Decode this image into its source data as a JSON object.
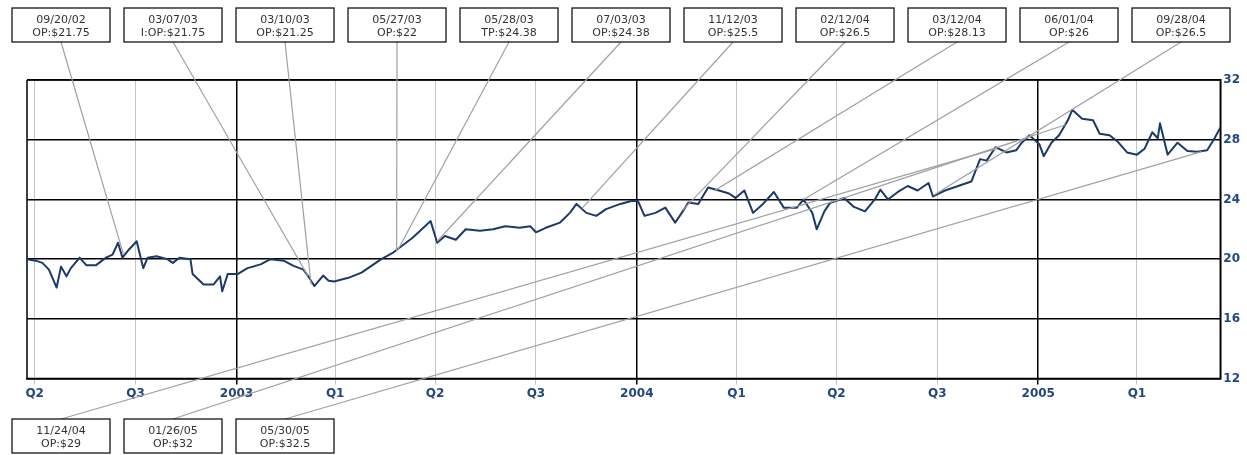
{
  "chart_data": {
    "type": "line",
    "x": [
      "2002-06-24",
      "2002-07-02",
      "2002-07-08",
      "2002-07-14",
      "2002-07-21",
      "2002-07-25",
      "2002-07-30",
      "2002-08-03",
      "2002-08-11",
      "2002-08-17",
      "2002-08-26",
      "2002-09-04",
      "2002-09-10",
      "2002-09-15",
      "2002-09-19",
      "2002-09-25",
      "2002-10-02",
      "2002-10-08",
      "2002-10-12",
      "2002-10-20",
      "2002-10-30",
      "2002-11-04",
      "2002-11-10",
      "2002-11-20",
      "2002-11-22",
      "2002-12-02",
      "2002-12-11",
      "2002-12-17",
      "2002-12-19",
      "2002-12-24",
      "2003-01-02",
      "2003-01-11",
      "2003-01-23",
      "2003-02-01",
      "2003-02-13",
      "2003-02-22",
      "2003-03-03",
      "2003-03-07",
      "2003-03-13",
      "2003-03-21",
      "2003-03-26",
      "2003-03-31",
      "2003-04-13",
      "2003-04-25",
      "2003-05-04",
      "2003-05-13",
      "2003-05-23",
      "2003-06-01",
      "2003-06-10",
      "2003-06-16",
      "2003-06-27",
      "2003-07-03",
      "2003-07-10",
      "2003-07-20",
      "2003-07-29",
      "2003-08-11",
      "2003-08-23",
      "2003-09-03",
      "2003-09-16",
      "2003-09-26",
      "2003-10-01",
      "2003-10-10",
      "2003-10-23",
      "2003-11-01",
      "2003-11-07",
      "2003-11-16",
      "2003-11-25",
      "2003-12-04",
      "2003-12-17",
      "2003-12-27",
      "2004-01-02",
      "2004-01-08",
      "2004-01-18",
      "2004-01-27",
      "2004-02-05",
      "2004-02-11",
      "2004-02-17",
      "2004-02-26",
      "2004-03-06",
      "2004-03-16",
      "2004-03-25",
      "2004-03-31",
      "2004-04-08",
      "2004-04-16",
      "2004-04-25",
      "2004-05-05",
      "2004-05-14",
      "2004-05-26",
      "2004-06-01",
      "2004-06-09",
      "2004-06-13",
      "2004-06-20",
      "2004-06-25",
      "2004-07-08",
      "2004-07-17",
      "2004-07-27",
      "2004-08-05",
      "2004-08-10",
      "2004-08-17",
      "2004-08-26",
      "2004-09-04",
      "2004-09-13",
      "2004-09-23",
      "2004-09-27",
      "2004-10-08",
      "2004-10-20",
      "2004-11-01",
      "2004-11-09",
      "2004-11-15",
      "2004-11-23",
      "2004-12-03",
      "2004-12-12",
      "2004-12-17",
      "2004-12-24",
      "2005-01-02",
      "2005-01-06",
      "2005-01-13",
      "2005-01-20",
      "2005-01-28",
      "2005-02-01",
      "2005-02-10",
      "2005-02-20",
      "2005-02-26",
      "2005-03-07",
      "2005-03-14",
      "2005-03-23",
      "2005-04-01",
      "2005-04-08",
      "2005-04-15",
      "2005-04-20",
      "2005-04-22",
      "2005-04-29",
      "2005-05-08",
      "2005-05-17",
      "2005-05-26",
      "2005-06-04",
      "2005-06-10",
      "2005-06-16"
    ],
    "series": [
      {
        "color": "#1b3a6b",
        "values": [
          20.0,
          19.9,
          19.75,
          19.3,
          18.1,
          19.5,
          18.85,
          19.4,
          20.1,
          19.6,
          19.6,
          20.1,
          20.3,
          21.1,
          20.1,
          20.65,
          21.2,
          19.4,
          20.1,
          20.2,
          20.0,
          19.75,
          20.1,
          20.0,
          19.0,
          18.3,
          18.3,
          18.85,
          17.85,
          19.0,
          19.0,
          19.4,
          19.65,
          20.0,
          19.9,
          19.55,
          19.3,
          18.9,
          18.2,
          18.9,
          18.55,
          18.5,
          18.75,
          19.1,
          19.55,
          20.0,
          20.4,
          20.9,
          21.4,
          21.8,
          22.55,
          21.1,
          21.55,
          21.3,
          22.0,
          21.9,
          22.0,
          22.2,
          22.1,
          22.2,
          21.8,
          22.1,
          22.45,
          23.1,
          23.7,
          23.1,
          22.9,
          23.35,
          23.7,
          23.9,
          23.9,
          22.9,
          23.1,
          23.45,
          22.45,
          23.1,
          23.8,
          23.7,
          24.8,
          24.6,
          24.4,
          24.1,
          24.6,
          23.1,
          23.7,
          24.5,
          23.45,
          23.45,
          24.0,
          23.1,
          22.0,
          23.2,
          23.75,
          24.1,
          23.5,
          23.2,
          24.0,
          24.65,
          24.0,
          24.5,
          24.9,
          24.6,
          25.1,
          24.2,
          24.6,
          24.9,
          25.2,
          26.7,
          26.6,
          27.5,
          27.15,
          27.3,
          27.8,
          28.3,
          27.7,
          26.9,
          27.8,
          28.3,
          29.3,
          30.0,
          29.4,
          29.3,
          28.4,
          28.3,
          27.9,
          27.15,
          27.0,
          27.4,
          28.5,
          28.1,
          29.1,
          27.0,
          27.8,
          27.25,
          27.2,
          27.3,
          28.0,
          28.8
        ]
      }
    ],
    "xlim": [
      "2002-06-24",
      "2005-06-16"
    ],
    "xticks": [
      {
        "value": "2002-07-01",
        "label": "Q2"
      },
      {
        "value": "2002-10-01",
        "label": "Q3"
      },
      {
        "value": "2003-01-01",
        "label": "2003"
      },
      {
        "value": "2003-04-01",
        "label": "Q1"
      },
      {
        "value": "2003-07-01",
        "label": "Q2"
      },
      {
        "value": "2003-10-01",
        "label": "Q3"
      },
      {
        "value": "2004-01-01",
        "label": "2004"
      },
      {
        "value": "2004-04-01",
        "label": "Q1"
      },
      {
        "value": "2004-07-01",
        "label": "Q2"
      },
      {
        "value": "2004-10-01",
        "label": "Q3"
      },
      {
        "value": "2005-01-01",
        "label": "2005"
      },
      {
        "value": "2005-04-01",
        "label": "Q1"
      }
    ],
    "ylim": [
      12,
      32
    ],
    "yticks": [
      12,
      16,
      20,
      24,
      28,
      32
    ],
    "grid": true,
    "marker": "none",
    "annotations": [
      {
        "text": "09/20/02\nOP:$21.75",
        "x": "2002-09-20",
        "y": 20.3
      },
      {
        "text": "03/07/03\nI:OP:$21.75",
        "x": "2003-03-07",
        "y": 18.9
      },
      {
        "text": "03/10/03\nOP:$21.25",
        "x": "2003-03-10",
        "y": 18.3
      },
      {
        "text": "05/27/03\nOP:$22",
        "x": "2003-05-27",
        "y": 20.5
      },
      {
        "text": "05/28/03\nTP:$24.38",
        "x": "2003-05-28",
        "y": 20.6
      },
      {
        "text": "07/03/03\nOP:$24.38",
        "x": "2003-07-03",
        "y": 21.2
      },
      {
        "text": "11/12/03\nOP:$25.5",
        "x": "2003-11-12",
        "y": 23.4
      },
      {
        "text": "02/12/04\nOP:$26.5",
        "x": "2004-02-12",
        "y": 23.3
      },
      {
        "text": "03/12/04\nOP:$28.13",
        "x": "2004-03-12",
        "y": 24.6
      },
      {
        "text": "06/01/04\nOP:$26",
        "x": "2004-06-01",
        "y": 24.0
      },
      {
        "text": "09/28/04\nOP:$26.5",
        "x": "2004-09-28",
        "y": 24.3
      },
      {
        "text": "11/24/04\nOP:$29",
        "x": "2004-11-24",
        "y": 27.4
      },
      {
        "text": "01/26/05\nOP:$32",
        "x": "2005-01-26",
        "y": 29.0
      },
      {
        "text": "05/30/05\nOP:$32.5",
        "x": "2005-05-30",
        "y": 27.2
      }
    ]
  }
}
